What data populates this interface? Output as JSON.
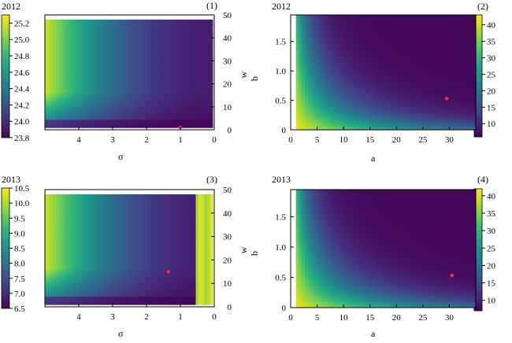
{
  "colors": {
    "viridis": [
      "#440154",
      "#482878",
      "#3e4989",
      "#31688e",
      "#26828e",
      "#1f9e89",
      "#35b779",
      "#6ece58",
      "#b5de2b",
      "#fde725"
    ],
    "marker": "#ff3333",
    "panel_background": "#3f2f88"
  },
  "chart_data": [
    {
      "type": "heatmap",
      "panel_label": "(1)",
      "year_label": "2012",
      "xlabel": "σ",
      "ylabel": "w",
      "xlim": [
        5,
        0
      ],
      "ylim": [
        0,
        50
      ],
      "xticks": [
        "4",
        "3",
        "2",
        "1",
        "0"
      ],
      "yticks": [
        "0",
        "10",
        "20",
        "30",
        "40",
        "50"
      ],
      "colorbar": {
        "side": "left",
        "min": 23.8,
        "max": 25.3,
        "ticks": [
          "23.8",
          "24.0",
          "24.2",
          "24.4",
          "24.6",
          "24.8",
          "25.0",
          "25.2"
        ]
      },
      "extent": {
        "x": [
          5,
          0.05
        ],
        "y": [
          1,
          48
        ]
      },
      "marker": {
        "x": 1.0,
        "y": 1.0
      }
    },
    {
      "type": "heatmap",
      "panel_label": "(2)",
      "year_label": "2012",
      "xlabel": "a",
      "ylabel": "b",
      "xlim": [
        0,
        35
      ],
      "ylim": [
        0,
        1.95
      ],
      "xticks": [
        "0",
        "5",
        "10",
        "15",
        "20",
        "25",
        "30"
      ],
      "yticks": [
        "0",
        "0.5",
        "1.0",
        "1.5"
      ],
      "colorbar": {
        "side": "right",
        "min": 6,
        "max": 43,
        "ticks": [
          "10",
          "15",
          "20",
          "25",
          "30",
          "35",
          "40"
        ]
      },
      "extent": {
        "x": [
          1,
          35
        ],
        "y": [
          0,
          1.95
        ]
      },
      "marker": {
        "x": 29.5,
        "y": 0.53
      }
    },
    {
      "type": "heatmap",
      "panel_label": "(3)",
      "year_label": "2013",
      "xlabel": "σ",
      "ylabel": "w",
      "xlim": [
        5,
        0
      ],
      "ylim": [
        0,
        50
      ],
      "xticks": [
        "4",
        "3",
        "2",
        "1",
        "0"
      ],
      "yticks": [
        "0",
        "10",
        "20",
        "30",
        "40",
        "50"
      ],
      "colorbar": {
        "side": "left",
        "min": 6.5,
        "max": 10.5,
        "ticks": [
          "6.5",
          "7.0",
          "7.5",
          "8.0",
          "8.5",
          "9.0",
          "9.5",
          "10.0",
          "10.5"
        ]
      },
      "extent": {
        "x": [
          5,
          0.05
        ],
        "y": [
          1,
          48
        ]
      },
      "marker": {
        "x": 1.35,
        "y": 15
      }
    },
    {
      "type": "heatmap",
      "panel_label": "(4)",
      "year_label": "2013",
      "xlabel": "a",
      "ylabel": "b",
      "xlim": [
        0,
        35
      ],
      "ylim": [
        0,
        1.95
      ],
      "xticks": [
        "0",
        "5",
        "10",
        "15",
        "20",
        "25",
        "30"
      ],
      "yticks": [
        "0",
        "0.5",
        "1.0",
        "1.5"
      ],
      "colorbar": {
        "side": "right",
        "min": 7,
        "max": 42,
        "ticks": [
          "10",
          "15",
          "20",
          "25",
          "30",
          "35",
          "40"
        ]
      },
      "extent": {
        "x": [
          1,
          35
        ],
        "y": [
          0,
          1.95
        ]
      },
      "marker": {
        "x": 30.5,
        "y": 0.53
      }
    }
  ]
}
